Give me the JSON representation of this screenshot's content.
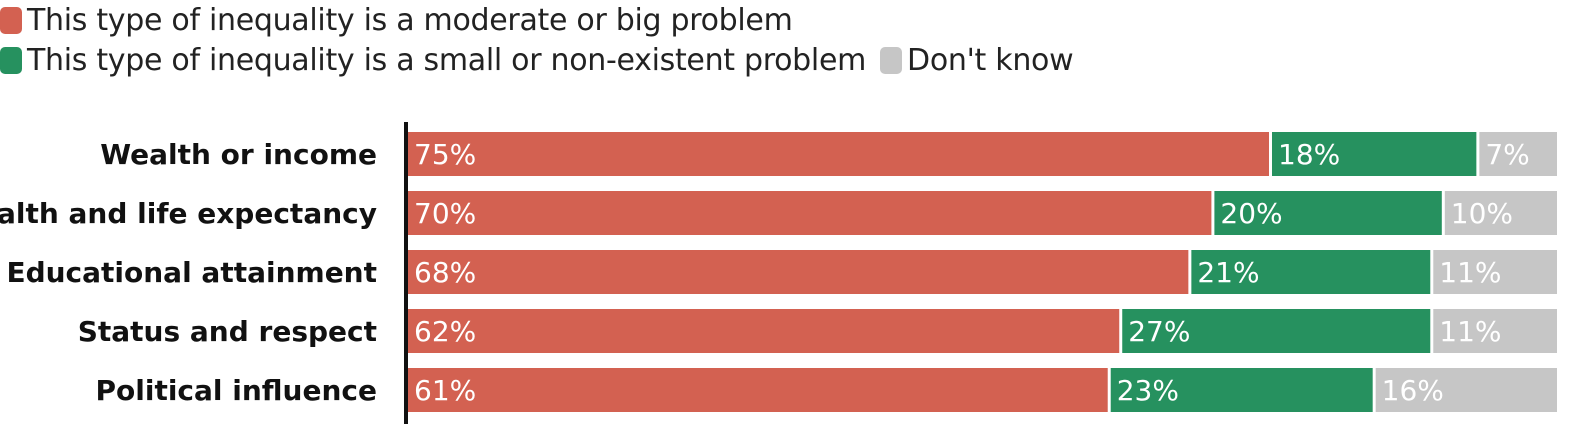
{
  "colors": {
    "moderate_big": "#d36151",
    "small_none": "#26915f",
    "dont_know": "#c6c6c6"
  },
  "chart_data": {
    "type": "bar",
    "orientation": "horizontal",
    "stacked": true,
    "title": "",
    "xlabel": "",
    "ylabel": "",
    "xlim": [
      0,
      100
    ],
    "grid": false,
    "legend_position": "top-left",
    "categories": [
      "Wealth or income",
      "Health and life expectancy",
      "Educational attainment",
      "Status and respect",
      "Political influence"
    ],
    "series": [
      {
        "name": "This type of inequality is a moderate or big problem",
        "color": "#d36151",
        "values": [
          75,
          70,
          68,
          62,
          61
        ]
      },
      {
        "name": "This type of inequality is a small or non-existent problem",
        "color": "#26915f",
        "values": [
          18,
          20,
          21,
          27,
          23
        ]
      },
      {
        "name": "Don't know",
        "color": "#c6c6c6",
        "values": [
          7,
          10,
          11,
          11,
          16
        ]
      }
    ]
  }
}
